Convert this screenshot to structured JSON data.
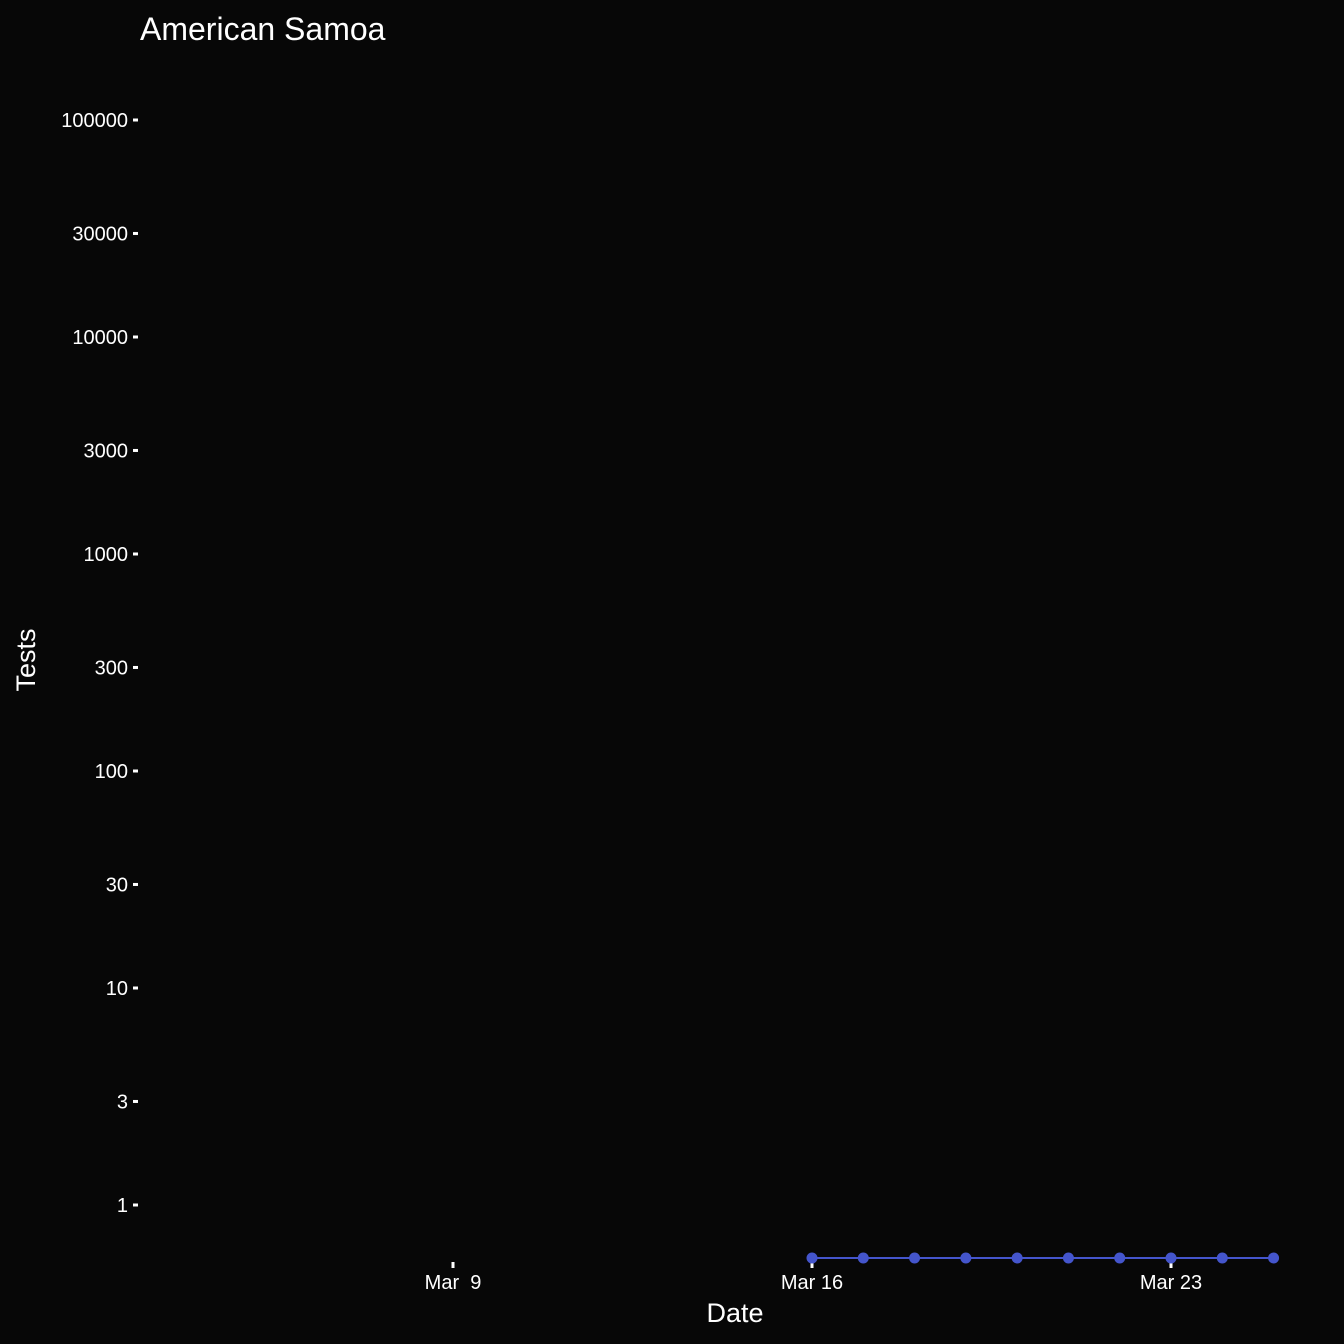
{
  "chart_data": {
    "type": "line",
    "title": "American Samoa",
    "xlabel": "Date",
    "ylabel": "Tests",
    "y_scale": "log",
    "y_ticks": [
      1,
      3,
      10,
      30,
      100,
      300,
      1000,
      3000,
      10000,
      30000,
      100000
    ],
    "y_tick_labels": [
      "1",
      "3",
      "10",
      "30",
      "100",
      "300",
      "1000",
      "3000",
      "10000",
      "30000",
      "100000"
    ],
    "x_ticks": [
      "2020-03-09",
      "2020-03-16",
      "2020-03-23"
    ],
    "x_tick_labels": [
      "Mar  9",
      "Mar 16",
      "Mar 23"
    ],
    "xlim": [
      "2020-03-02",
      "2020-03-25"
    ],
    "series": [
      {
        "color": "#4455cc",
        "x": [
          "2020-03-16",
          "2020-03-17",
          "2020-03-18",
          "2020-03-19",
          "2020-03-20",
          "2020-03-21",
          "2020-03-22",
          "2020-03-23",
          "2020-03-24",
          "2020-03-25"
        ],
        "y": [
          0,
          0,
          0,
          0,
          0,
          0,
          0,
          0,
          0,
          0
        ]
      }
    ],
    "grid": false,
    "background": "#070707"
  }
}
